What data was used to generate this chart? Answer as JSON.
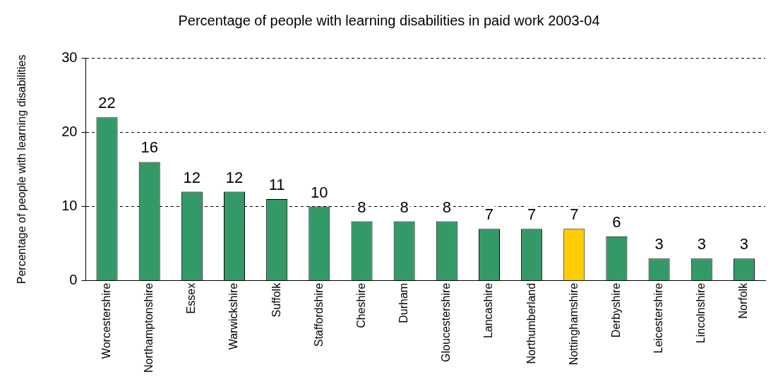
{
  "chart_data": {
    "type": "bar",
    "title": "Percentage of people with learning disabilities in paid work 2003-04",
    "ylabel": "Percentage of people with learning disabilities",
    "categories": [
      "Worcestershire",
      "Northamptonshire",
      "Essex",
      "Warwickshire",
      "Suffolk",
      "Staffordshire",
      "Cheshire",
      "Durham",
      "Gloucestershire",
      "Lancashire",
      "Northumberland",
      "Nottinghamshire",
      "Derbyshire",
      "Leicestershire",
      "Lincolnshire",
      "Norfolk"
    ],
    "values": [
      22,
      16,
      12,
      12,
      11,
      10,
      8,
      8,
      8,
      7,
      7,
      7,
      6,
      3,
      3,
      3
    ],
    "colors": [
      "#339966",
      "#339966",
      "#339966",
      "#339966",
      "#339966",
      "#339966",
      "#339966",
      "#339966",
      "#339966",
      "#339966",
      "#339966",
      "#ffcc00",
      "#339966",
      "#339966",
      "#339966",
      "#339966"
    ],
    "ylim": [
      0,
      30
    ],
    "yticks": [
      0,
      10,
      20,
      30
    ],
    "grid": "y",
    "data_labels": true
  }
}
